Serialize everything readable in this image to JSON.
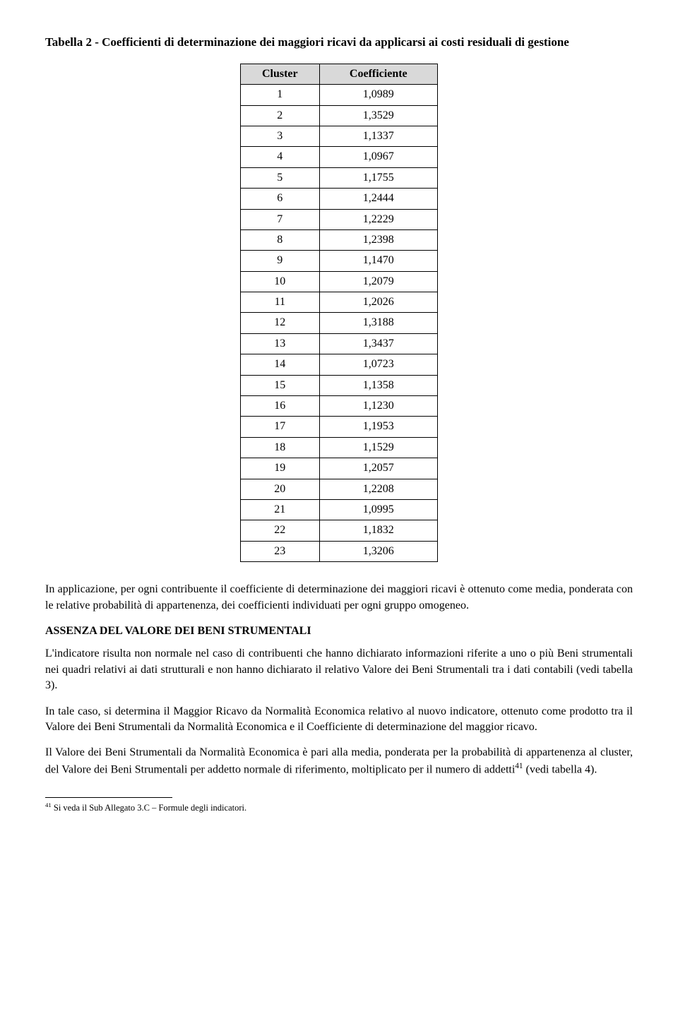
{
  "title": "Tabella 2 - Coefficienti di determinazione dei maggiori ricavi da applicarsi ai costi residuali di gestione",
  "table": {
    "headers": [
      "Cluster",
      "Coefficiente"
    ],
    "rows": [
      [
        "1",
        "1,0989"
      ],
      [
        "2",
        "1,3529"
      ],
      [
        "3",
        "1,1337"
      ],
      [
        "4",
        "1,0967"
      ],
      [
        "5",
        "1,1755"
      ],
      [
        "6",
        "1,2444"
      ],
      [
        "7",
        "1,2229"
      ],
      [
        "8",
        "1,2398"
      ],
      [
        "9",
        "1,1470"
      ],
      [
        "10",
        "1,2079"
      ],
      [
        "11",
        "1,2026"
      ],
      [
        "12",
        "1,3188"
      ],
      [
        "13",
        "1,3437"
      ],
      [
        "14",
        "1,0723"
      ],
      [
        "15",
        "1,1358"
      ],
      [
        "16",
        "1,1230"
      ],
      [
        "17",
        "1,1953"
      ],
      [
        "18",
        "1,1529"
      ],
      [
        "19",
        "1,2057"
      ],
      [
        "20",
        "1,2208"
      ],
      [
        "21",
        "1,0995"
      ],
      [
        "22",
        "1,1832"
      ],
      [
        "23",
        "1,3206"
      ]
    ]
  },
  "para1": "In applicazione, per ogni contribuente il coefficiente di determinazione dei maggiori ricavi è ottenuto come media, ponderata con le relative probabilità di appartenenza, dei coefficienti individuati per ogni gruppo omogeneo.",
  "section_heading": "ASSENZA DEL VALORE DEI BENI STRUMENTALI",
  "para2": "L'indicatore risulta non normale nel caso di contribuenti che hanno dichiarato informazioni riferite a uno o più Beni strumentali nei quadri relativi ai dati strutturali e non hanno dichiarato il relativo Valore dei Beni Strumentali tra i dati contabili (vedi tabella 3).",
  "para3": "In tale caso, si determina il Maggior Ricavo da Normalità Economica relativo al nuovo indicatore, ottenuto come prodotto tra il Valore dei Beni Strumentali da Normalità Economica e il Coefficiente di determinazione del maggior ricavo.",
  "para4_pre": "Il Valore dei Beni Strumentali da Normalità Economica è pari alla media, ponderata per la probabilità di appartenenza al cluster, del Valore dei Beni Strumentali per addetto normale di riferimento, moltiplicato per il numero di addetti",
  "para4_sup": "41",
  "para4_post": " (vedi tabella 4).",
  "footnote_marker": "41",
  "footnote_text": " Si veda il Sub Allegato 3.C – Formule degli indicatori."
}
